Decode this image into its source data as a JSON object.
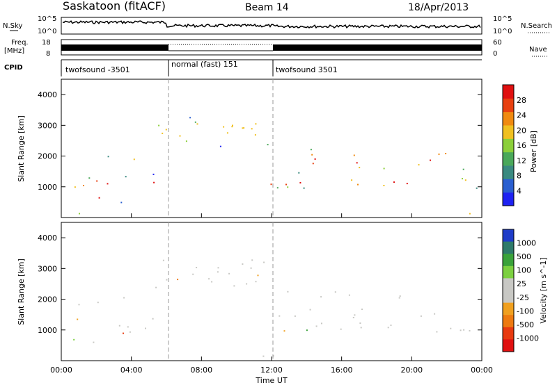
{
  "header": {
    "station": "Saskatoon (fitACF)",
    "beam": "Beam 14",
    "date": "18/Apr/2013"
  },
  "panels": {
    "nsky": {
      "left_label": "N.Sky",
      "right_label": "N.Search",
      "top_tick": "10^5",
      "bottom_tick": "10^0",
      "right_top_tick": "10^5",
      "right_bottom_tick": "10^0"
    },
    "freq": {
      "left_label_1": "Freq.",
      "left_label_2": "[MHz]",
      "right_label": "Nave",
      "left_top_tick": "18",
      "left_bottom_tick": "8",
      "right_top_tick": "60",
      "right_bottom_tick": "0"
    },
    "cpid": {
      "label": "CPID",
      "segments": [
        {
          "label": "twofsound -3501",
          "start": 0,
          "end": 6
        },
        {
          "label": "normal (fast) 151",
          "start": 6,
          "end": 12
        },
        {
          "label": "twofsound 3501",
          "start": 12,
          "end": 24
        }
      ]
    }
  },
  "xaxis": {
    "label": "Time UT",
    "ticks": [
      "00:00",
      "04:00",
      "08:00",
      "12:00",
      "16:00",
      "20:00",
      "00:00"
    ]
  },
  "colors": {
    "power_scale": [
      "#1e22f2",
      "#2a5fd0",
      "#3a8a80",
      "#4aa85a",
      "#8ccf3a",
      "#f0c020",
      "#f08a10",
      "#e84010",
      "#e01010"
    ],
    "velocity_scale": [
      "#1e3cc8",
      "#2e7a6a",
      "#3aa23a",
      "#7cd040",
      "#c8c8c4",
      "#c8c8c4",
      "#f0a020",
      "#ee7a10",
      "#e83a10",
      "#e01010"
    ]
  },
  "chart_data": [
    {
      "type": "heatmap",
      "title": "",
      "xlabel": "Time UT",
      "ylabel": "Slant Range [km]",
      "xlim": [
        0,
        24
      ],
      "ylim": [
        0,
        4500
      ],
      "yticks": [
        "1000",
        "2000",
        "3000",
        "4000"
      ],
      "colorbar": {
        "label": "Power [dB]",
        "ticks": [
          "4",
          "8",
          "12",
          "16",
          "20",
          "24",
          "28"
        ]
      },
      "features": [
        {
          "t_start": 0,
          "t_end": 5.5,
          "range_center": 1150,
          "range_width": 400
        },
        {
          "t_start": 5.5,
          "t_end": 12,
          "range_center": 2700,
          "range_width": 600
        },
        {
          "t_start": 12,
          "t_end": 24,
          "range_center": 1100,
          "range_width": 250
        }
      ]
    },
    {
      "type": "heatmap",
      "title": "",
      "xlabel": "Time UT",
      "ylabel": "Slant Range [km]",
      "xlim": [
        0,
        24
      ],
      "ylim": [
        0,
        4500
      ],
      "yticks": [
        "1000",
        "2000",
        "3000",
        "4000"
      ],
      "colorbar": {
        "label": "Velocity [m s^-1]",
        "ticks": [
          "1000",
          "500",
          "100",
          "25",
          "-25",
          "-100",
          "-500",
          "-1000"
        ]
      }
    }
  ]
}
